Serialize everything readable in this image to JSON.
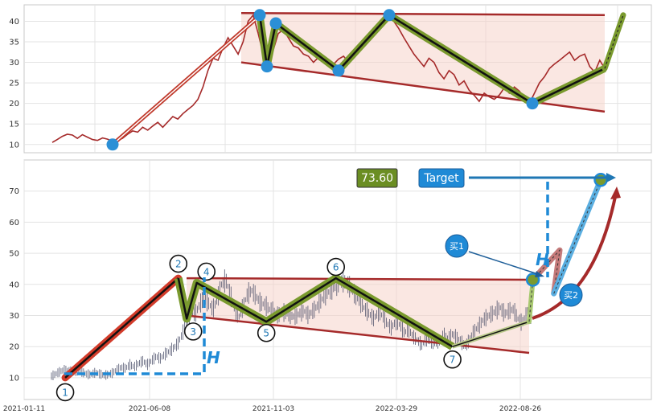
{
  "chart_data": [
    {
      "type": "line",
      "panel": "overview",
      "ylim": [
        8,
        44
      ],
      "yticks": [
        "10",
        "15",
        "20",
        "25",
        "30",
        "35",
        "40"
      ],
      "grid": true,
      "price_series": [
        10.5,
        11.2,
        12,
        12.5,
        12.3,
        11.5,
        12.4,
        11.8,
        11.2,
        11,
        11.6,
        11.3,
        10.8,
        11,
        11.5,
        12.5,
        13.3,
        13,
        14.2,
        13.5,
        14.5,
        15.4,
        14.2,
        15.5,
        16.8,
        16.2,
        17.5,
        18.5,
        19.5,
        21,
        24,
        28,
        31,
        30.5,
        33.5,
        36,
        34,
        32,
        35,
        40,
        41.5,
        37,
        32,
        29.5,
        33,
        37,
        38,
        36,
        34,
        33.5,
        32,
        31.5,
        30,
        31.2,
        30.5,
        30,
        29.5,
        30.8,
        31.5,
        30,
        31.5,
        33,
        35,
        36.8,
        38,
        39,
        40.5,
        41.2,
        40,
        38.2,
        36,
        34,
        32,
        30.5,
        29,
        31,
        30,
        27.5,
        26,
        28,
        27,
        24.5,
        25.5,
        23.2,
        22,
        20.5,
        22.5,
        21.6,
        21,
        22,
        23.8,
        22.5,
        24,
        23,
        21.5,
        20,
        22.5,
        25,
        26.5,
        28.5,
        29.6,
        30.5,
        31.5,
        32.5,
        30.5,
        31.5,
        32,
        29,
        27.6,
        30.5,
        28.5
      ],
      "pattern_points": [
        {
          "x": 0,
          "y": 10
        },
        {
          "x": 1,
          "y": 41.5
        },
        {
          "x": 2,
          "y": 29
        },
        {
          "x": 3,
          "y": 39.5
        },
        {
          "x": 4,
          "y": 28
        },
        {
          "x": 5,
          "y": 41.5
        },
        {
          "x": 6,
          "y": 20
        },
        {
          "x": 7,
          "y": 28.5
        }
      ],
      "target_projection_end": 41.5,
      "upper_trendline": [
        42,
        41.5
      ],
      "lower_trendline": [
        30,
        18
      ]
    },
    {
      "type": "line",
      "panel": "pattern-detail",
      "ylim": [
        3,
        80
      ],
      "yticks": [
        "10",
        "20",
        "30",
        "40",
        "50",
        "60",
        "70"
      ],
      "xticks": [
        "2021-01-11",
        "2021-06-08",
        "2021-11-03",
        "2022-03-29",
        "2022-08-26"
      ],
      "grid": true,
      "pivots": [
        {
          "label": "1",
          "x": "2021-03-01",
          "y": 10
        },
        {
          "label": "2",
          "x": "2021-07-14",
          "y": 42
        },
        {
          "label": "3",
          "x": "2021-07-24",
          "y": 29
        },
        {
          "label": "4",
          "x": "2021-08-05",
          "y": 40.5
        },
        {
          "label": "5",
          "x": "2021-10-27",
          "y": 28
        },
        {
          "label": "6",
          "x": "2022-01-18",
          "y": 42
        },
        {
          "label": "7",
          "x": "2022-06-06",
          "y": 20
        }
      ],
      "breakout": {
        "label": "买1",
        "x": "2022-09-10",
        "y": 41.5
      },
      "retest": {
        "label": "买2",
        "x": "2022-10-05",
        "y": 35
      },
      "target": {
        "label": "Target",
        "value": "73.60",
        "x": "2022-11-30",
        "y": 73.6
      },
      "height_label": "H",
      "upper_trendline": [
        42,
        41.5
      ],
      "lower_trendline": [
        30,
        18
      ]
    }
  ]
}
